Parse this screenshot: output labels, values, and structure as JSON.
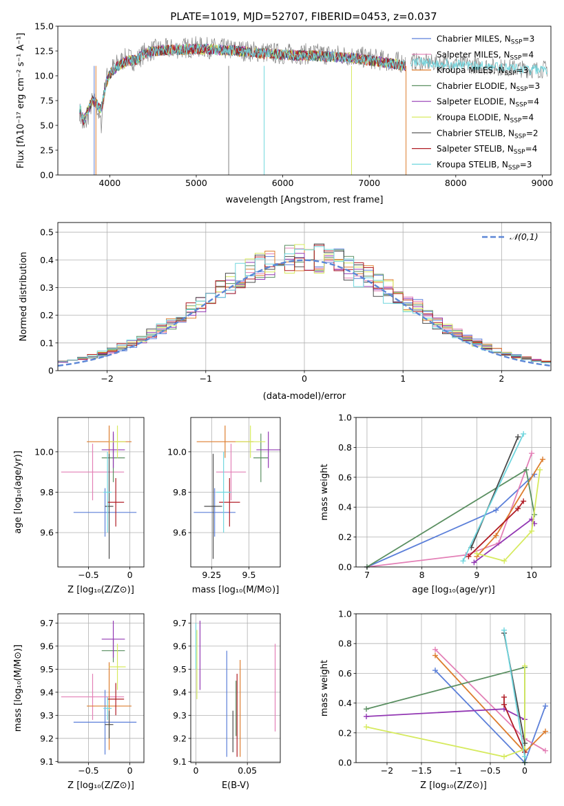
{
  "figure_title": "PLATE=1019, MJD=52707, FIBERID=0453, z=0.037",
  "colors": {
    "chabrier_miles": "#5b7fd9",
    "salpeter_miles": "#e37fb6",
    "kroupa_miles": "#dd7d2e",
    "chabrier_elodie": "#5a8f61",
    "salpeter_elodie": "#9237b3",
    "kroupa_elodie": "#d6ea5e",
    "chabrier_stelib": "#4a4a4a",
    "salpeter_stelib": "#b01b24",
    "kroupa_stelib": "#6fd6de",
    "observed": "#808080",
    "gaussian": "#5b86d6",
    "grid": "#b0b0b0"
  },
  "chart_data": [
    {
      "id": "spectrum",
      "type": "line",
      "title": "PLATE=1019, MJD=52707, FIBERID=0453, z=0.037",
      "xlabel": "wavelength [Angstrom, rest frame]",
      "ylabel": "Flux [fλ10⁻¹⁷ erg cm⁻² s⁻¹ A⁻¹]",
      "xlim": [
        3400,
        9100
      ],
      "ylim": [
        0,
        15
      ],
      "xticks": [
        4000,
        5000,
        6000,
        7000,
        8000,
        9000
      ],
      "yticks": [
        0.0,
        2.5,
        5.0,
        7.5,
        10.0,
        12.5,
        15.0
      ],
      "grid": false,
      "legend": "top-right",
      "legend_entries": [
        "Chabrier MILES, N_SSP=3",
        "Salpeter MILES, N_SSP=4",
        "Kroupa MILES, N_SSP=3",
        "Chabrier ELODIE, N_SSP=3",
        "Salpeter ELODIE, N_SSP=4",
        "Kroupa ELODIE, N_SSP=4",
        "Chabrier STELIB, N_SSP=2",
        "Salpeter STELIB, N_SSP=4",
        "Kroupa STELIB, N_SSP=3"
      ],
      "legend_colors": [
        "chabrier_miles",
        "salpeter_miles",
        "kroupa_miles",
        "chabrier_elodie",
        "salpeter_elodie",
        "kroupa_elodie",
        "chabrier_stelib",
        "salpeter_stelib",
        "kroupa_stelib"
      ],
      "observed": {
        "x": [
          3650,
          3700,
          3750,
          3800,
          3850,
          3900,
          3950,
          4000,
          4100,
          4200,
          4300,
          4400,
          4500,
          4700,
          5000,
          5300,
          5600,
          6000,
          6400,
          6800,
          7200,
          7420
        ],
        "y": [
          6.5,
          4.5,
          6.0,
          7.5,
          7.0,
          5.0,
          9.5,
          10.5,
          11.3,
          11.8,
          11.5,
          12.3,
          12.6,
          12.7,
          12.9,
          12.7,
          12.5,
          12.2,
          12.2,
          12.0,
          11.5,
          11.3
        ]
      },
      "observed_red": {
        "x": [
          7480,
          7700,
          8000,
          8300,
          8600,
          8900,
          9060
        ],
        "y": [
          11.5,
          11.3,
          11.2,
          11.0,
          10.8,
          10.6,
          10.7
        ]
      },
      "model": {
        "x": [
          3650,
          3700,
          3750,
          3800,
          3850,
          3900,
          3950,
          4000,
          4100,
          4200,
          4300,
          4400,
          4500,
          4700,
          5000,
          5300,
          5600,
          6000,
          6400,
          6800,
          7200,
          7420
        ],
        "y": [
          6.8,
          5.5,
          6.5,
          7.5,
          7.2,
          6.5,
          9.0,
          10.2,
          11.0,
          11.5,
          11.6,
          12.2,
          12.5,
          12.6,
          12.7,
          12.6,
          12.4,
          12.1,
          12.0,
          11.8,
          11.3,
          11.0
        ]
      }
    },
    {
      "id": "residuals",
      "type": "line",
      "xlabel": "(data-model)/error",
      "ylabel": "Normed distribution",
      "xlim": [
        -2.5,
        2.5
      ],
      "ylim": [
        0,
        0.535
      ],
      "xticks": [
        -2,
        -1,
        0,
        1,
        2
      ],
      "yticks": [
        0.0,
        0.1,
        0.2,
        0.3,
        0.4,
        0.5
      ],
      "grid": true,
      "legend": "top-right",
      "gaussian_label": "𝒩(0,1)"
    },
    {
      "id": "age_vs_Z",
      "type": "scatter",
      "xlabel": "Z [log₁₀(Z/Z⊙)]",
      "ylabel": "age  [log₁₀(age/yr)]",
      "xlim": [
        -0.87,
        0.17
      ],
      "ylim": [
        9.43,
        10.17
      ],
      "xticks": [
        -0.5,
        0.0
      ],
      "yticks": [
        9.6,
        9.8,
        10.0
      ],
      "grid": true,
      "points": [
        {
          "series": "chabrier_miles",
          "x": -0.3,
          "y": 9.7,
          "xerr": 0.38,
          "yerr": 0.12
        },
        {
          "series": "salpeter_miles",
          "x": -0.45,
          "y": 9.9,
          "xerr": 0.38,
          "yerr": 0.14
        },
        {
          "series": "kroupa_miles",
          "x": -0.25,
          "y": 10.05,
          "xerr": 0.27,
          "yerr": 0.08
        },
        {
          "series": "chabrier_elodie",
          "x": -0.2,
          "y": 9.97,
          "xerr": 0.14,
          "yerr": 0.12
        },
        {
          "series": "salpeter_elodie",
          "x": -0.2,
          "y": 10.01,
          "xerr": 0.14,
          "yerr": 0.09
        },
        {
          "series": "kroupa_elodie",
          "x": -0.15,
          "y": 10.05,
          "xerr": 0.1,
          "yerr": 0.08
        },
        {
          "series": "chabrier_stelib",
          "x": -0.25,
          "y": 9.73,
          "xerr": 0.05,
          "yerr": 0.26
        },
        {
          "series": "salpeter_stelib",
          "x": -0.17,
          "y": 9.75,
          "xerr": 0.1,
          "yerr": 0.12
        },
        {
          "series": "kroupa_stelib",
          "x": -0.27,
          "y": 9.8,
          "xerr": 0.05,
          "yerr": 0.2
        }
      ]
    },
    {
      "id": "age_vs_mass",
      "type": "scatter",
      "xlabel": "mass [log₁₀(M/M⊙)]",
      "xlim": [
        9.11,
        9.71
      ],
      "ylim": [
        9.43,
        10.17
      ],
      "xticks": [
        9.25,
        9.5
      ],
      "yticks": [
        9.6,
        9.8,
        10.0
      ],
      "grid": true,
      "points": [
        {
          "series": "chabrier_miles",
          "x": 9.27,
          "y": 9.7,
          "xerr": 0.14,
          "yerr": 0.12
        },
        {
          "series": "salpeter_miles",
          "x": 9.38,
          "y": 9.9,
          "xerr": 0.1,
          "yerr": 0.14
        },
        {
          "series": "kroupa_miles",
          "x": 9.34,
          "y": 10.05,
          "xerr": 0.19,
          "yerr": 0.08
        },
        {
          "series": "chabrier_elodie",
          "x": 9.58,
          "y": 9.97,
          "xerr": 0.05,
          "yerr": 0.12
        },
        {
          "series": "salpeter_elodie",
          "x": 9.63,
          "y": 10.01,
          "xerr": 0.08,
          "yerr": 0.09
        },
        {
          "series": "kroupa_elodie",
          "x": 9.51,
          "y": 10.05,
          "xerr": 0.1,
          "yerr": 0.08
        },
        {
          "series": "chabrier_stelib",
          "x": 9.26,
          "y": 9.73,
          "xerr": 0.06,
          "yerr": 0.26
        },
        {
          "series": "salpeter_stelib",
          "x": 9.37,
          "y": 9.75,
          "xerr": 0.07,
          "yerr": 0.12
        },
        {
          "series": "kroupa_stelib",
          "x": 9.33,
          "y": 9.8,
          "xerr": 0.05,
          "yerr": 0.2
        }
      ]
    },
    {
      "id": "weight_vs_age",
      "type": "line",
      "xlabel": "age  [log₁₀(age/yr)]",
      "ylabel": "mass weight",
      "xlim": [
        6.8,
        10.35
      ],
      "ylim": [
        0,
        1
      ],
      "xticks": [
        7,
        8,
        9,
        10
      ],
      "yticks": [
        0.0,
        0.2,
        0.4,
        0.6,
        0.8,
        1.0
      ],
      "grid": true,
      "series": [
        {
          "key": "chabrier_miles",
          "x": [
            7.0,
            9.35,
            10.05
          ],
          "y": [
            0.0,
            0.38,
            0.62
          ]
        },
        {
          "key": "salpeter_miles",
          "x": [
            7.0,
            8.8,
            9.4,
            10.0
          ],
          "y": [
            0.0,
            0.08,
            0.16,
            0.76
          ]
        },
        {
          "key": "kroupa_miles",
          "x": [
            9.0,
            9.35,
            10.2
          ],
          "y": [
            0.07,
            0.21,
            0.72
          ]
        },
        {
          "key": "chabrier_elodie",
          "x": [
            7.0,
            9.9,
            10.05
          ],
          "y": [
            0.0,
            0.65,
            0.35
          ]
        },
        {
          "key": "salpeter_elodie",
          "x": [
            8.95,
            10.0,
            10.05
          ],
          "y": [
            0.03,
            0.32,
            0.29
          ]
        },
        {
          "key": "kroupa_elodie",
          "x": [
            9.0,
            9.5,
            10.0,
            10.15
          ],
          "y": [
            0.09,
            0.04,
            0.24,
            0.65
          ]
        },
        {
          "key": "chabrier_stelib",
          "x": [
            8.9,
            9.75
          ],
          "y": [
            0.13,
            0.87
          ]
        },
        {
          "key": "salpeter_stelib",
          "x": [
            8.85,
            9.75,
            9.85
          ],
          "y": [
            0.07,
            0.39,
            0.44
          ]
        },
        {
          "key": "kroupa_stelib",
          "x": [
            8.75,
            9.85
          ],
          "y": [
            0.04,
            0.89
          ]
        }
      ]
    },
    {
      "id": "mass_vs_Z",
      "type": "scatter",
      "xlabel": "Z [log₁₀(Z/Z⊙)]",
      "ylabel": "mass [log₁₀(M/M⊙)]",
      "xlim": [
        -0.87,
        0.17
      ],
      "ylim": [
        9.095,
        9.74
      ],
      "xticks": [
        -0.5,
        0.0
      ],
      "yticks": [
        9.1,
        9.2,
        9.3,
        9.4,
        9.5,
        9.6,
        9.7
      ],
      "grid": true,
      "points": [
        {
          "series": "chabrier_miles",
          "x": -0.3,
          "y": 9.27,
          "xerr": 0.38,
          "yerr": 0.14
        },
        {
          "series": "salpeter_miles",
          "x": -0.45,
          "y": 9.38,
          "xerr": 0.38,
          "yerr": 0.1
        },
        {
          "series": "kroupa_miles",
          "x": -0.25,
          "y": 9.34,
          "xerr": 0.27,
          "yerr": 0.19
        },
        {
          "series": "chabrier_elodie",
          "x": -0.2,
          "y": 9.58,
          "xerr": 0.14,
          "yerr": 0.05
        },
        {
          "series": "salpeter_elodie",
          "x": -0.2,
          "y": 9.63,
          "xerr": 0.14,
          "yerr": 0.08
        },
        {
          "series": "kroupa_elodie",
          "x": -0.15,
          "y": 9.51,
          "xerr": 0.1,
          "yerr": 0.1
        },
        {
          "series": "chabrier_stelib",
          "x": -0.25,
          "y": 9.26,
          "xerr": 0.05,
          "yerr": 0.06
        },
        {
          "series": "salpeter_stelib",
          "x": -0.17,
          "y": 9.37,
          "xerr": 0.1,
          "yerr": 0.07
        },
        {
          "series": "kroupa_stelib",
          "x": -0.27,
          "y": 9.33,
          "xerr": 0.05,
          "yerr": 0.05
        }
      ]
    },
    {
      "id": "mass_vs_ebv",
      "type": "scatter",
      "xlabel": "E(B-V)",
      "xlim": [
        -0.005,
        0.082
      ],
      "ylim": [
        9.095,
        9.74
      ],
      "xticks": [
        0.0,
        0.05
      ],
      "yticks": [
        9.1,
        9.2,
        9.3,
        9.4,
        9.5,
        9.6,
        9.7
      ],
      "grid": true,
      "points": [
        {
          "series": "chabrier_miles",
          "x": 0.03,
          "y": 9.35,
          "xerr": 0.0,
          "yerr": 0.23
        },
        {
          "series": "salpeter_miles",
          "x": 0.077,
          "y": 9.42,
          "xerr": 0.0,
          "yerr": 0.19
        },
        {
          "series": "kroupa_miles",
          "x": 0.043,
          "y": 9.33,
          "xerr": 0.0,
          "yerr": 0.21
        },
        {
          "series": "chabrier_elodie",
          "x": 0.039,
          "y": 9.33,
          "xerr": 0.0,
          "yerr": 0.12
        },
        {
          "series": "salpeter_elodie",
          "x": 0.004,
          "y": 9.56,
          "xerr": 0.0,
          "yerr": 0.15
        },
        {
          "series": "kroupa_elodie",
          "x": 0.001,
          "y": 9.52,
          "xerr": 0.0,
          "yerr": 0.15
        },
        {
          "series": "chabrier_stelib",
          "x": 0.036,
          "y": 9.23,
          "xerr": 0.0,
          "yerr": 0.09
        },
        {
          "series": "salpeter_stelib",
          "x": 0.04,
          "y": 9.3,
          "xerr": 0.0,
          "yerr": 0.18
        },
        {
          "series": "kroupa_stelib",
          "x": 0.0,
          "y": 9.6,
          "xerr": 0.0,
          "yerr": 0.1
        }
      ]
    },
    {
      "id": "weight_vs_Z",
      "type": "line",
      "xlabel": "Z [log₁₀(Z/Z⊙)]",
      "ylabel": "mass weight",
      "xlim": [
        -2.45,
        0.38
      ],
      "ylim": [
        0,
        1
      ],
      "xticks": [
        -2.0,
        -1.5,
        -1.0,
        -0.5,
        0.0
      ],
      "yticks": [
        0.0,
        0.2,
        0.4,
        0.6,
        0.8,
        1.0
      ],
      "grid": true,
      "series": [
        {
          "key": "chabrier_miles",
          "x": [
            -1.3,
            0.0,
            0.3
          ],
          "y": [
            0.62,
            0.0,
            0.38
          ]
        },
        {
          "key": "salpeter_miles",
          "x": [
            -1.3,
            0.0,
            0.3
          ],
          "y": [
            0.76,
            0.16,
            0.08
          ]
        },
        {
          "key": "kroupa_miles",
          "x": [
            -1.3,
            0.0,
            0.3
          ],
          "y": [
            0.72,
            0.07,
            0.21
          ]
        },
        {
          "key": "chabrier_elodie",
          "x": [
            -2.3,
            0.0,
            0.0
          ],
          "y": [
            0.36,
            0.64,
            0.0
          ]
        },
        {
          "key": "salpeter_elodie",
          "x": [
            -2.3,
            -0.3,
            0.0
          ],
          "y": [
            0.31,
            0.36,
            0.29
          ]
        },
        {
          "key": "kroupa_elodie",
          "x": [
            -2.3,
            -0.3,
            0.0,
            0.0
          ],
          "y": [
            0.24,
            0.04,
            0.09,
            0.65
          ]
        },
        {
          "key": "chabrier_stelib",
          "x": [
            -0.3,
            0.0
          ],
          "y": [
            0.87,
            0.13
          ]
        },
        {
          "key": "salpeter_stelib",
          "x": [
            -0.3,
            -0.3,
            0.0
          ],
          "y": [
            0.44,
            0.39,
            0.07
          ]
        },
        {
          "key": "kroupa_stelib",
          "x": [
            -0.3,
            0.0
          ],
          "y": [
            0.89,
            0.04
          ]
        }
      ]
    }
  ]
}
